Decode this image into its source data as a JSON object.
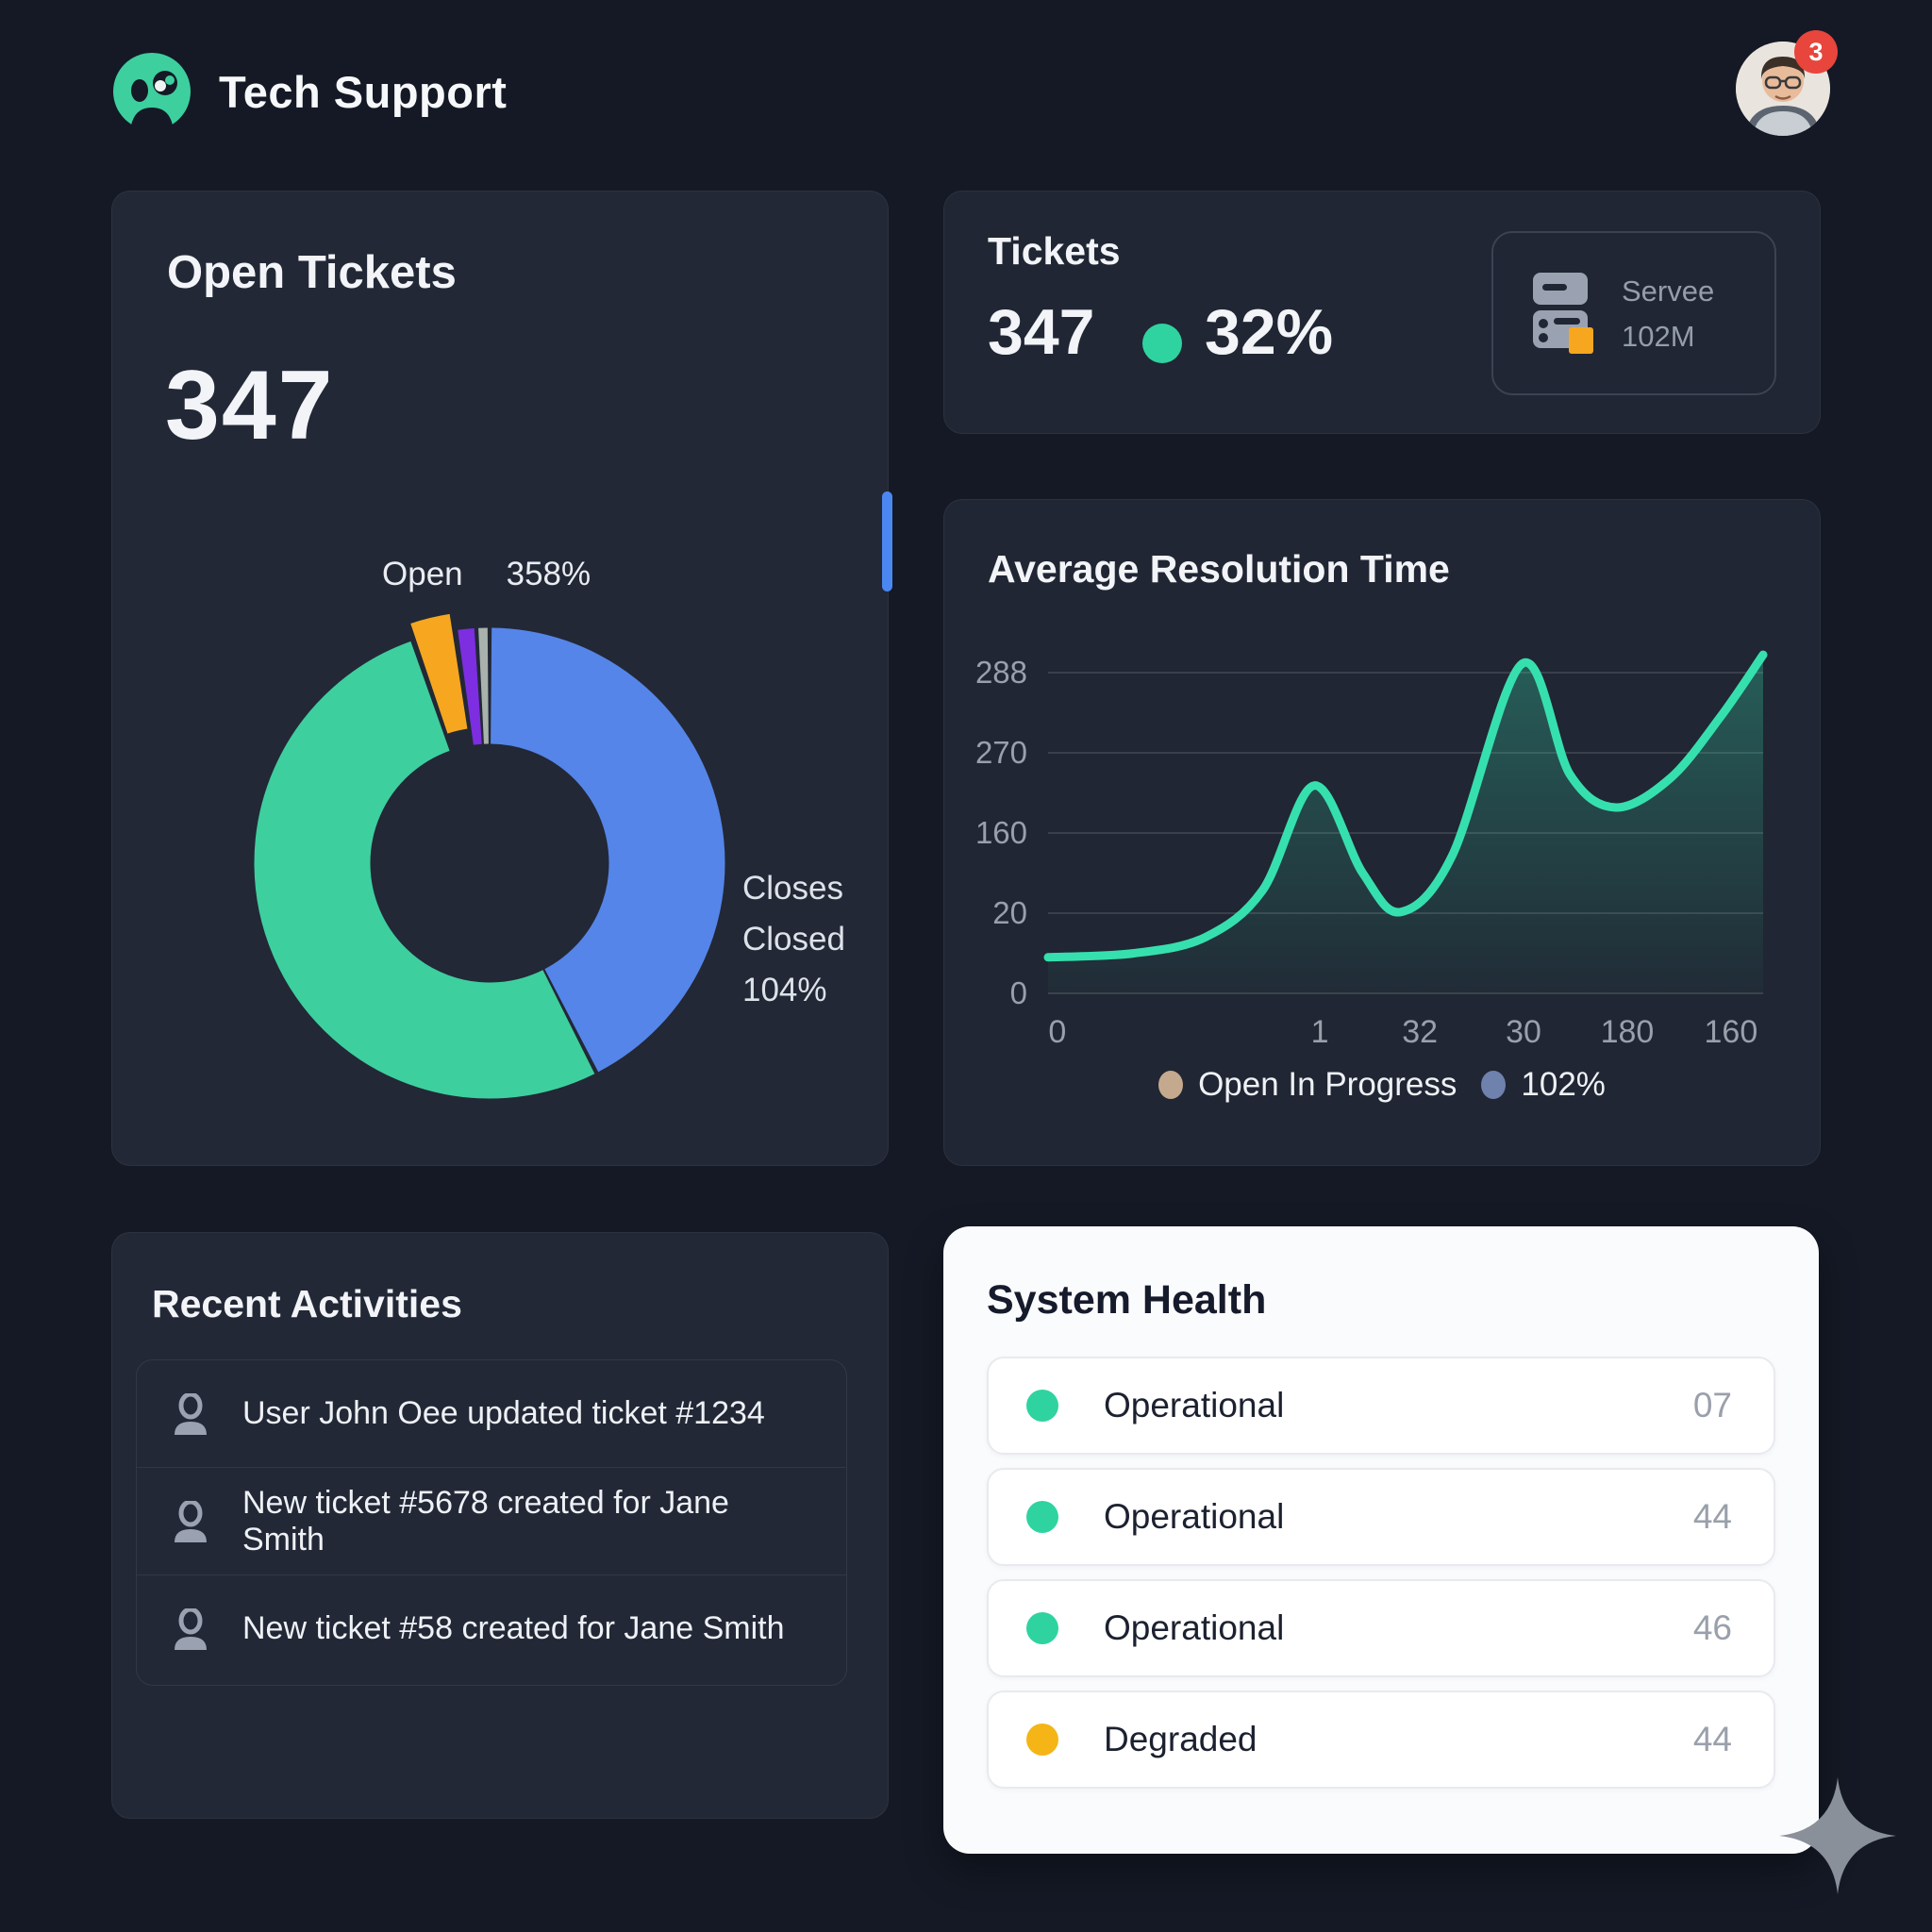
{
  "header": {
    "app_title": "Tech Support",
    "notification_badge": "3"
  },
  "open_tickets_card": {
    "title": "Open Tickets",
    "count": "347",
    "donut_series_label": "Open",
    "donut_series_value": "358%",
    "side_label_line1": "Closes",
    "side_label_line2": "Closed",
    "side_label_line3": "104%"
  },
  "tickets_card": {
    "title": "Tickets",
    "count": "347",
    "percent": "32%",
    "server_box": {
      "line1": "Servee",
      "line2": "102M"
    }
  },
  "resolution_card": {
    "title": "Average Resolution Time"
  },
  "activities_card": {
    "title": "Recent Activities",
    "items": [
      {
        "text": "User John Oee updated ticket #1234"
      },
      {
        "text": "New ticket #5678 created for Jane Smith"
      },
      {
        "text": "New ticket #58 created for Jane Smith"
      }
    ]
  },
  "system_health_card": {
    "title": "System Health",
    "rows": [
      {
        "status": "Operational",
        "value": "07",
        "color": "#2fd3a0"
      },
      {
        "status": "Operational",
        "value": "44",
        "color": "#2fd3a0"
      },
      {
        "status": "Operational",
        "value": "46",
        "color": "#2fd3a0"
      },
      {
        "status": "Degraded",
        "value": "44",
        "color": "#f5b517"
      }
    ]
  },
  "colors": {
    "accent_green": "#2fd3a0",
    "badge_red": "#e8453c",
    "scrollbar_blue": "#4b87f0"
  },
  "chart_data": [
    {
      "type": "pie",
      "donut": true,
      "title": "Open Tickets breakdown",
      "segments": [
        {
          "label": "Closed",
          "value": 42.5,
          "color": "#5585e8",
          "exploded": false
        },
        {
          "label": "Open",
          "value": 52.2,
          "color": "#3ecf9e",
          "exploded": false
        },
        {
          "label": "",
          "value": 3.0,
          "color": "#f6a71f",
          "exploded": true
        },
        {
          "label": "",
          "value": 1.4,
          "color": "#7c2ee0",
          "exploded": false
        },
        {
          "label": "",
          "value": 0.9,
          "color": "#a9b2ac",
          "exploded": false
        }
      ]
    },
    {
      "type": "area",
      "title": "Average Resolution Time",
      "y_ticks": {
        "labels": [
          "288",
          "270",
          "160",
          "20",
          "0"
        ],
        "values": [
          288,
          270,
          160,
          20,
          0
        ]
      },
      "x_ticks": {
        "labels": [
          "0",
          "1",
          "32",
          "30",
          "180",
          "160"
        ],
        "positions": [
          0.013,
          0.38,
          0.52,
          0.665,
          0.81,
          0.955
        ]
      },
      "series": [
        {
          "name": "Average resolution time",
          "color": "#36e0ae",
          "points": [
            {
              "x": 0.0,
              "y": 9
            },
            {
              "x": 0.12,
              "y": 10
            },
            {
              "x": 0.22,
              "y": 14
            },
            {
              "x": 0.3,
              "y": 60
            },
            {
              "x": 0.372,
              "y": 225
            },
            {
              "x": 0.44,
              "y": 90
            },
            {
              "x": 0.493,
              "y": 22
            },
            {
              "x": 0.565,
              "y": 120
            },
            {
              "x": 0.663,
              "y": 290
            },
            {
              "x": 0.73,
              "y": 240
            },
            {
              "x": 0.794,
              "y": 195
            },
            {
              "x": 0.87,
              "y": 235
            },
            {
              "x": 0.94,
              "y": 278
            },
            {
              "x": 1.0,
              "y": 292
            }
          ]
        }
      ],
      "legend": [
        {
          "label": "Open In Progress",
          "color": "#c4a98e"
        },
        {
          "label": "102%",
          "color": "#6f81ad"
        }
      ]
    }
  ]
}
